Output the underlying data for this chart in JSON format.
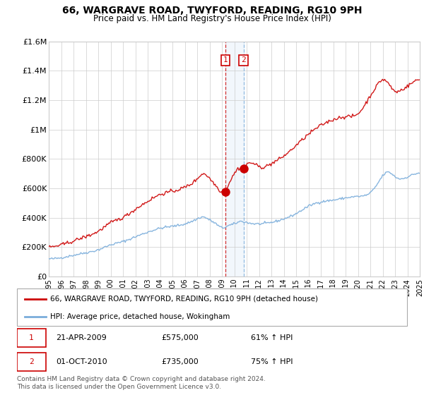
{
  "title": "66, WARGRAVE ROAD, TWYFORD, READING, RG10 9PH",
  "subtitle": "Price paid vs. HM Land Registry's House Price Index (HPI)",
  "legend_line1": "66, WARGRAVE ROAD, TWYFORD, READING, RG10 9PH (detached house)",
  "legend_line2": "HPI: Average price, detached house, Wokingham",
  "transaction1_date": "21-APR-2009",
  "transaction1_price": "£575,000",
  "transaction1_hpi": "61% ↑ HPI",
  "transaction2_date": "01-OCT-2010",
  "transaction2_price": "£735,000",
  "transaction2_hpi": "75% ↑ HPI",
  "footer": "Contains HM Land Registry data © Crown copyright and database right 2024.\nThis data is licensed under the Open Government Licence v3.0.",
  "red_color": "#cc0000",
  "blue_color": "#7aaddb",
  "marker1_x": 2009.3,
  "marker1_y": 575000,
  "marker2_x": 2010.75,
  "marker2_y": 735000,
  "ylim": [
    0,
    1600000
  ],
  "yticks": [
    0,
    200000,
    400000,
    600000,
    800000,
    1000000,
    1200000,
    1400000,
    1600000
  ],
  "ytick_labels": [
    "£0",
    "£200K",
    "£400K",
    "£600K",
    "£800K",
    "£1M",
    "£1.2M",
    "£1.4M",
    "£1.6M"
  ],
  "xmin": 1995,
  "xmax": 2025
}
